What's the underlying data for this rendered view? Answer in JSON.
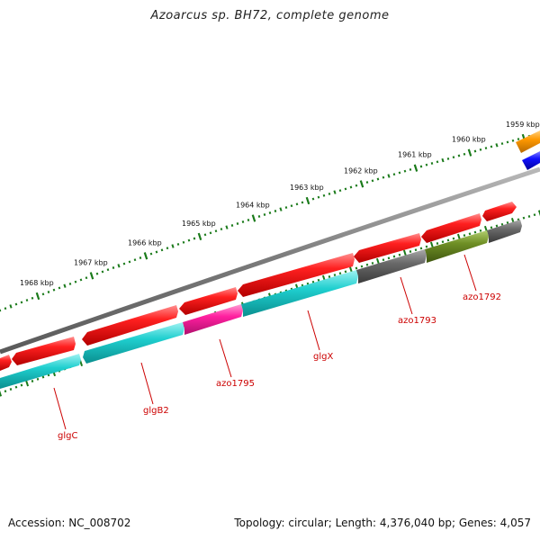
{
  "title": "Azoarcus sp. BH72, complete genome",
  "footer": {
    "accession": "Accession: NC_008702",
    "topology": "Topology: circular; Length: 4,376,040 bp; Genes: 4,057"
  },
  "scale_labels": [
    {
      "kbp": 1959,
      "text": "1959 kbp"
    },
    {
      "kbp": 1960,
      "text": "1960 kbp"
    },
    {
      "kbp": 1961,
      "text": "1961 kbp"
    },
    {
      "kbp": 1962,
      "text": "1962 kbp"
    },
    {
      "kbp": 1963,
      "text": "1963 kbp"
    },
    {
      "kbp": 1964,
      "text": "1964 kbp"
    },
    {
      "kbp": 1965,
      "text": "1965 kbp"
    },
    {
      "kbp": 1966,
      "text": "1966 kbp"
    },
    {
      "kbp": 1967,
      "text": "1967 kbp"
    },
    {
      "kbp": 1968,
      "text": "1968 kbp"
    }
  ],
  "gene_labels": [
    {
      "text": "azo1792",
      "kbp": 1959.85
    },
    {
      "text": "azo1793",
      "kbp": 1961.1
    },
    {
      "text": "glgX",
      "kbp": 1962.9
    },
    {
      "text": "azo1795",
      "kbp": 1964.8
    },
    {
      "text": "glgB2",
      "kbp": 1966.1
    },
    {
      "text": "glgC",
      "kbp": 1968.0
    }
  ],
  "colors": {
    "forward_cds": "#ff1a1a",
    "reverse_cyan": "#22cccc",
    "reverse_magenta": "#ff1fa0",
    "reverse_gray": "#666666",
    "reverse_olive": "#6b8e23",
    "orange": "#ff9900",
    "blue": "#1010ff",
    "backbone": "#808080",
    "ticks": "#1a7a1a",
    "label_red": "#cc0000"
  }
}
